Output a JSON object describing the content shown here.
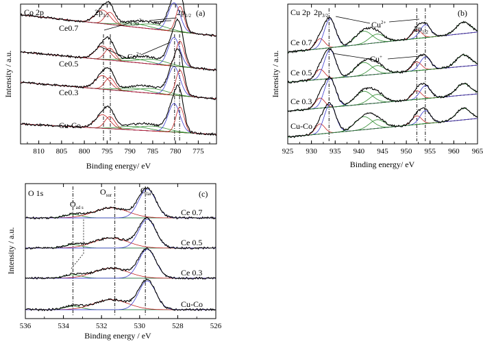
{
  "chart_data": [
    {
      "type": "line",
      "panel": "(a)",
      "element_label": "Co 2p",
      "xlabel": "Binding energy/ eV",
      "ylabel": "Intensity / a.u.",
      "xlim": [
        814,
        771
      ],
      "x_ticks": [
        810,
        805,
        800,
        795,
        790,
        785,
        780,
        775
      ],
      "reversed_x": true,
      "samples": [
        "Ce0.7",
        "Ce0.5",
        "Ce0.3",
        "Cu-Co"
      ],
      "annotations": {
        "p32": "2p3/2",
        "p12": "2p1/2",
        "co3": "Co3+",
        "co2": "Co2+"
      },
      "reference_lines_ev": [
        795.8,
        794.3,
        780.2,
        779.1
      ],
      "components": [
        {
          "center": 796.0,
          "height": 0.45,
          "width": 1.6,
          "color": "#c02020"
        },
        {
          "center": 794.4,
          "height": 0.4,
          "width": 1.1,
          "color": "#c02020"
        },
        {
          "center": 789.0,
          "height": 0.12,
          "width": 3.2,
          "color": "#2a8a2a"
        },
        {
          "center": 785.0,
          "height": 0.16,
          "width": 3.2,
          "color": "#2a8a2a"
        },
        {
          "center": 780.3,
          "height": 0.95,
          "width": 1.3,
          "color": "#3a3ad0"
        },
        {
          "center": 779.0,
          "height": 0.85,
          "width": 0.9,
          "color": "#c02020"
        }
      ],
      "offsets": [
        3,
        2,
        1,
        0
      ],
      "baselines": [
        {
          "start": 0.6,
          "end": -0.1
        },
        {
          "start": 0.55,
          "end": -0.05
        },
        {
          "start": 0.5,
          "end": -0.05
        },
        {
          "start": 0.3,
          "end": -0.05
        }
      ]
    },
    {
      "type": "line",
      "panel": "(b)",
      "element_label": "Cu 2p",
      "xlabel": "Binding energy/ eV",
      "ylabel": "Intensity / a.u.",
      "xlim": [
        925,
        965
      ],
      "x_ticks": [
        925,
        930,
        935,
        940,
        945,
        950,
        955,
        960,
        965
      ],
      "reversed_x": false,
      "samples": [
        "Ce 0.7",
        "Ce 0.5",
        "Ce 0.3",
        "Cu-Co"
      ],
      "annotations": {
        "p32": "2p3/2",
        "p12": "2p1/2",
        "cu2": "Cu2+",
        "cu1": "Cu+"
      },
      "reference_lines_ev": [
        933.7,
        952.2,
        954.0
      ],
      "components": [
        {
          "center": 931.8,
          "height": 0.35,
          "width": 1.0,
          "color": "#c02020"
        },
        {
          "center": 933.9,
          "height": 1.0,
          "width": 1.2,
          "color": "#3a3ad0"
        },
        {
          "center": 941.0,
          "height": 0.45,
          "width": 1.8,
          "color": "#2a8a2a"
        },
        {
          "center": 943.8,
          "height": 0.3,
          "width": 1.6,
          "color": "#2a8a2a"
        },
        {
          "center": 952.2,
          "height": 0.3,
          "width": 1.0,
          "color": "#c02020"
        },
        {
          "center": 954.0,
          "height": 0.45,
          "width": 1.1,
          "color": "#3a3ad0"
        },
        {
          "center": 962.0,
          "height": 0.4,
          "width": 1.5,
          "color": "#2a8a2a"
        }
      ],
      "offsets": [
        3,
        2,
        1,
        0
      ],
      "baselines": [
        {
          "start": -0.1,
          "end": 0.6
        },
        {
          "start": -0.1,
          "end": 0.5
        },
        {
          "start": -0.1,
          "end": 0.5
        },
        {
          "start": -0.1,
          "end": 0.55
        }
      ]
    },
    {
      "type": "line",
      "panel": "(c)",
      "element_label": "O 1s",
      "xlabel": "Binding energy / eV",
      "ylabel": "Intensity / a.u.",
      "xlim": [
        536,
        526
      ],
      "x_ticks": [
        536,
        534,
        532,
        530,
        528,
        526
      ],
      "reversed_x": true,
      "samples": [
        "Ce 0.7",
        "Ce 0.5",
        "Ce 0.3",
        "Cu-Co"
      ],
      "annotations": {
        "oads": "Oads",
        "osur": "Osur",
        "olat": "Olat"
      },
      "reference_lines_ev": [
        533.5,
        531.3,
        529.7
      ],
      "components": [
        {
          "center": 533.5,
          "height": 0.12,
          "width": 0.45,
          "color": "#2a8a2a"
        },
        {
          "center": 531.5,
          "height": 0.35,
          "width": 0.9,
          "color": "#c02020"
        },
        {
          "center": 529.6,
          "height": 1.0,
          "width": 0.45,
          "color": "#3a3ad0"
        }
      ],
      "offsets": [
        3,
        2,
        1,
        0
      ],
      "baselines": [
        {
          "start": 0,
          "end": 0
        },
        {
          "start": 0,
          "end": 0
        },
        {
          "start": 0,
          "end": 0
        },
        {
          "start": 0,
          "end": 0
        }
      ]
    }
  ]
}
